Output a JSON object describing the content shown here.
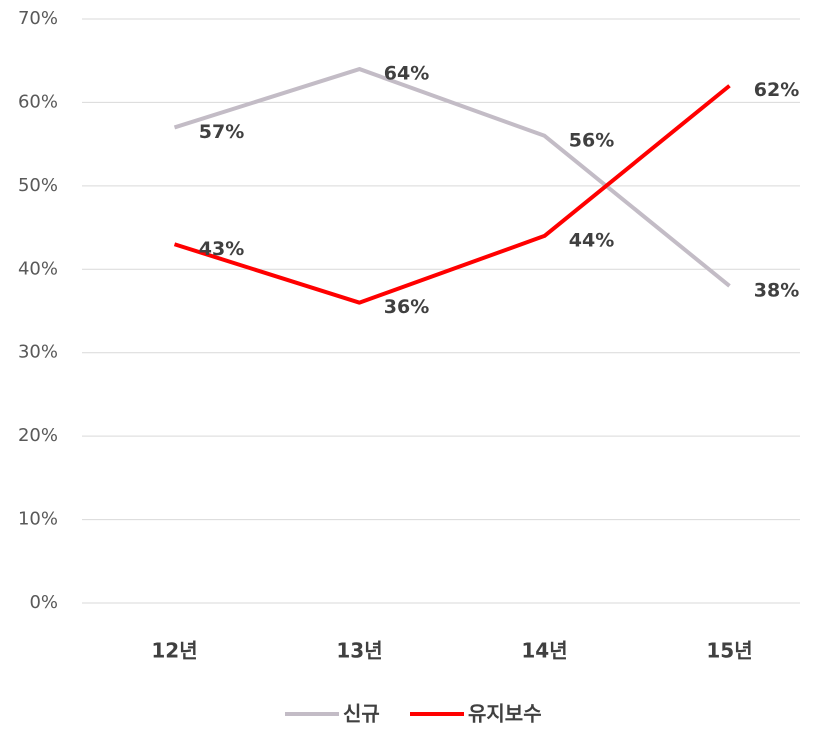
{
  "chart_data": {
    "type": "line",
    "categories": [
      "12년",
      "13년",
      "14년",
      "15년"
    ],
    "series": [
      {
        "name": "신규",
        "color": "#c3bcc6",
        "values": [
          57,
          64,
          56,
          38
        ],
        "value_labels": [
          "57%",
          "64%",
          "56%",
          "38%"
        ]
      },
      {
        "name": "유지보수",
        "color": "#ff0000",
        "values": [
          43,
          36,
          44,
          62
        ],
        "value_labels": [
          "43%",
          "36%",
          "44%",
          "62%"
        ]
      }
    ],
    "ylim": [
      0,
      70
    ],
    "yticks": [
      {
        "value": 0,
        "label": "0%"
      },
      {
        "value": 10,
        "label": "10%"
      },
      {
        "value": 20,
        "label": "20%"
      },
      {
        "value": 30,
        "label": "30%"
      },
      {
        "value": 40,
        "label": "40%"
      },
      {
        "value": 50,
        "label": "50%"
      },
      {
        "value": 60,
        "label": "60%"
      },
      {
        "value": 70,
        "label": "70%"
      }
    ],
    "grid": true,
    "legend": "bottom"
  }
}
